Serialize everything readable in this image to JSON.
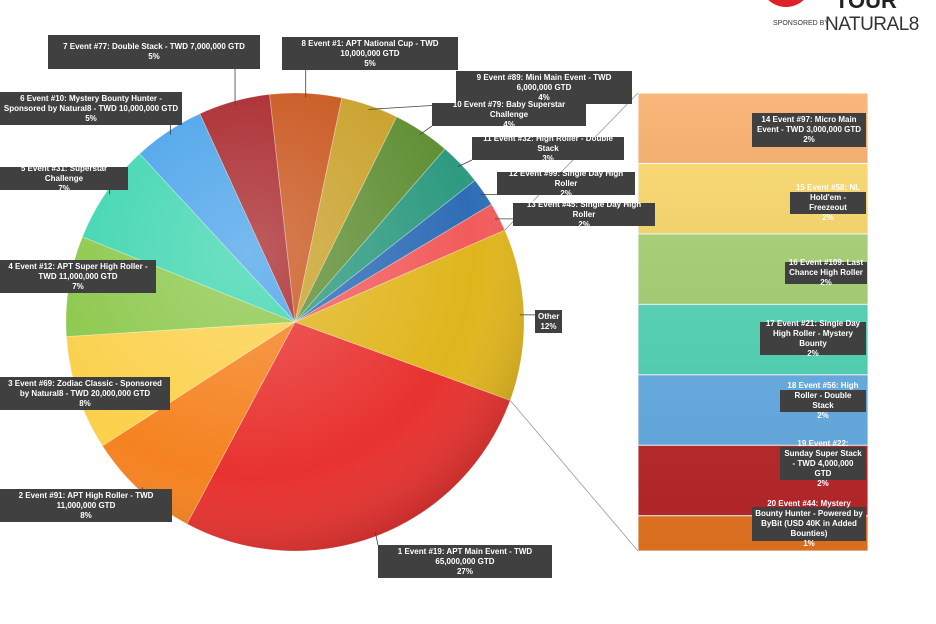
{
  "logo": {
    "title": "TOUR",
    "sponsored_by": "SPONSORED BY",
    "sponsor": "NATURAL8"
  },
  "chart_data": {
    "type": "pie-of-bar",
    "pie": [
      {
        "label": "1 Event #19: APT Main Event - TWD 65,000,000 GTD",
        "value": 27,
        "pct": "27%",
        "color": "#e8322f"
      },
      {
        "label": "2 Event #91: APT High Roller - TWD 11,000,000 GTD",
        "value": 8,
        "pct": "8%",
        "color": "#f5821f"
      },
      {
        "label": "3 Event #69: Zodiac Classic - Sponsored by Natural8 - TWD 20,000,000 GTD",
        "value": 8,
        "pct": "8%",
        "color": "#fbd14b"
      },
      {
        "label": "4 Event #12: APT Super High Roller - TWD 11,000,000 GTD",
        "value": 7,
        "pct": "7%",
        "color": "#8cc84b"
      },
      {
        "label": "5 Event #31: Superstar Challenge",
        "value": 7,
        "pct": "7%",
        "color": "#3fd6b0"
      },
      {
        "label": "6 Event #10: Mystery Bounty Hunter - Sponsored by Natural8 - TWD 10,000,000 GTD",
        "value": 5,
        "pct": "5%",
        "color": "#4aa3ea"
      },
      {
        "label": "7 Event #77: Double Stack - TWD 7,000,000 GTD",
        "value": 5,
        "pct": "5%",
        "color": "#a8262a"
      },
      {
        "label": "8 Event #1: APT National Cup - TWD 10,000,000 GTD",
        "value": 5,
        "pct": "5%",
        "color": "#c9561d"
      },
      {
        "label": "9 Event #89: Mini Main Event - TWD 6,000,000 GTD",
        "value": 4,
        "pct": "4%",
        "color": "#c9a12a"
      },
      {
        "label": "10 Event #79: Baby Superstar Challenge",
        "value": 4,
        "pct": "4%",
        "color": "#5f8f34"
      },
      {
        "label": "11 Event #32: High Roller - Double Stack",
        "value": 3,
        "pct": "3%",
        "color": "#2e9a80"
      },
      {
        "label": "12 Event #99: Single Day High Roller",
        "value": 2,
        "pct": "2%",
        "color": "#2e6db5"
      },
      {
        "label": "13 Event #45: Single Day High Roller",
        "value": 2,
        "pct": "2%",
        "color": "#f25b5b"
      },
      {
        "label": "Other",
        "value": 12,
        "pct": "12%",
        "color": "#e0b51c"
      }
    ],
    "bar": [
      {
        "label": "14 Event #97: Micro Main Event - TWD 3,000,000 GTD",
        "value": 2,
        "pct": "2%",
        "color": "#f9a55a"
      },
      {
        "label": "15 Event #58: NL Hold'em - Freezeout",
        "value": 2,
        "pct": "2%",
        "color": "#fdd85f"
      },
      {
        "label": "16 Event #109: Last Chance High Roller",
        "value": 2,
        "pct": "2%",
        "color": "#a6d46f"
      },
      {
        "label": "17 Event #21: Single Day High Roller - Mystery Bounty",
        "value": 2,
        "pct": "2%",
        "color": "#4fdcbb"
      },
      {
        "label": "18 Event #56: High Roller - Double Stack",
        "value": 2,
        "pct": "2%",
        "color": "#67b4f0"
      },
      {
        "label": "19 Event #22: Sunday Super Stack - TWD 4,000,000 GTD",
        "value": 2,
        "pct": "2%",
        "color": "#c3272a"
      },
      {
        "label": "20 Event #44: Mystery Bounty Hunter - Powered by ByBit (USD 40K in Added Bounties)",
        "value": 1,
        "pct": "1%",
        "color": "#f27a22"
      }
    ]
  }
}
